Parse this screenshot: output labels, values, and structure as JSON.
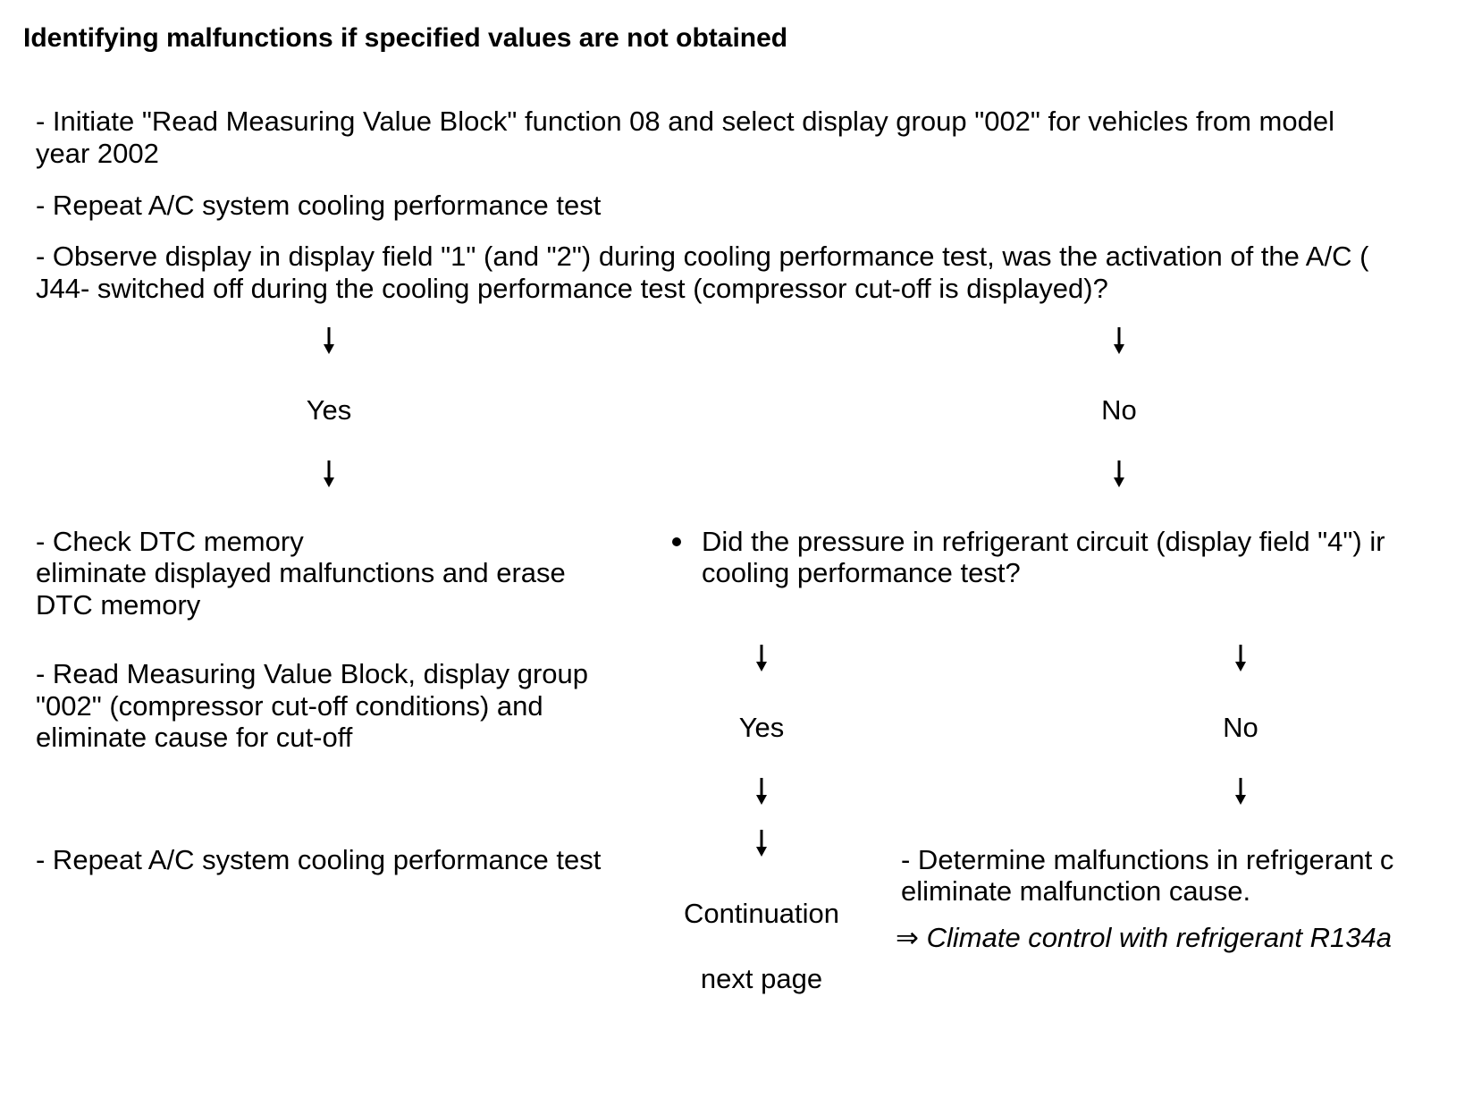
{
  "title": "Identifying malfunctions if specified values are not obtained",
  "steps": {
    "step1_line1": "- Initiate \"Read Measuring Value Block\" function 08 and select display group \"002\" for  vehicles from model",
    "step1_line2": "year 2002",
    "step2": "- Repeat A/C system cooling performance test",
    "step3_line1": "- Observe display in display field \"1\" (and \"2\") during cooling performance test, was the activation of the A/C (",
    "step3_line2": "J44- switched off during the cooling performance test (compressor cut-off is displayed)?"
  },
  "branch1": {
    "yes_label": "Yes",
    "no_label": "No"
  },
  "yes_branch": {
    "check_line1": "- Check DTC memory",
    "check_line2": "eliminate displayed malfunctions and erase",
    "check_line3": "DTC memory",
    "read_line1": "- Read Measuring Value Block, display group",
    "read_line2": "\"002\" (compressor cut-off conditions) and",
    "read_line3": "eliminate cause for cut-off",
    "repeat": "- Repeat A/C system cooling performance test"
  },
  "no_branch": {
    "question_line1": "Did the pressure in refrigerant circuit (display field \"4\") ir",
    "question_line2": "cooling performance test?",
    "yes_label": "Yes",
    "no_label": "No",
    "continuation": "Continuation",
    "next_page": "next page",
    "determine_line1": "- Determine malfunctions in refrigerant c",
    "determine_line2": "eliminate malfunction cause.",
    "link_arrow": "⇒",
    "link_text": "Climate control with refrigerant R134a"
  }
}
